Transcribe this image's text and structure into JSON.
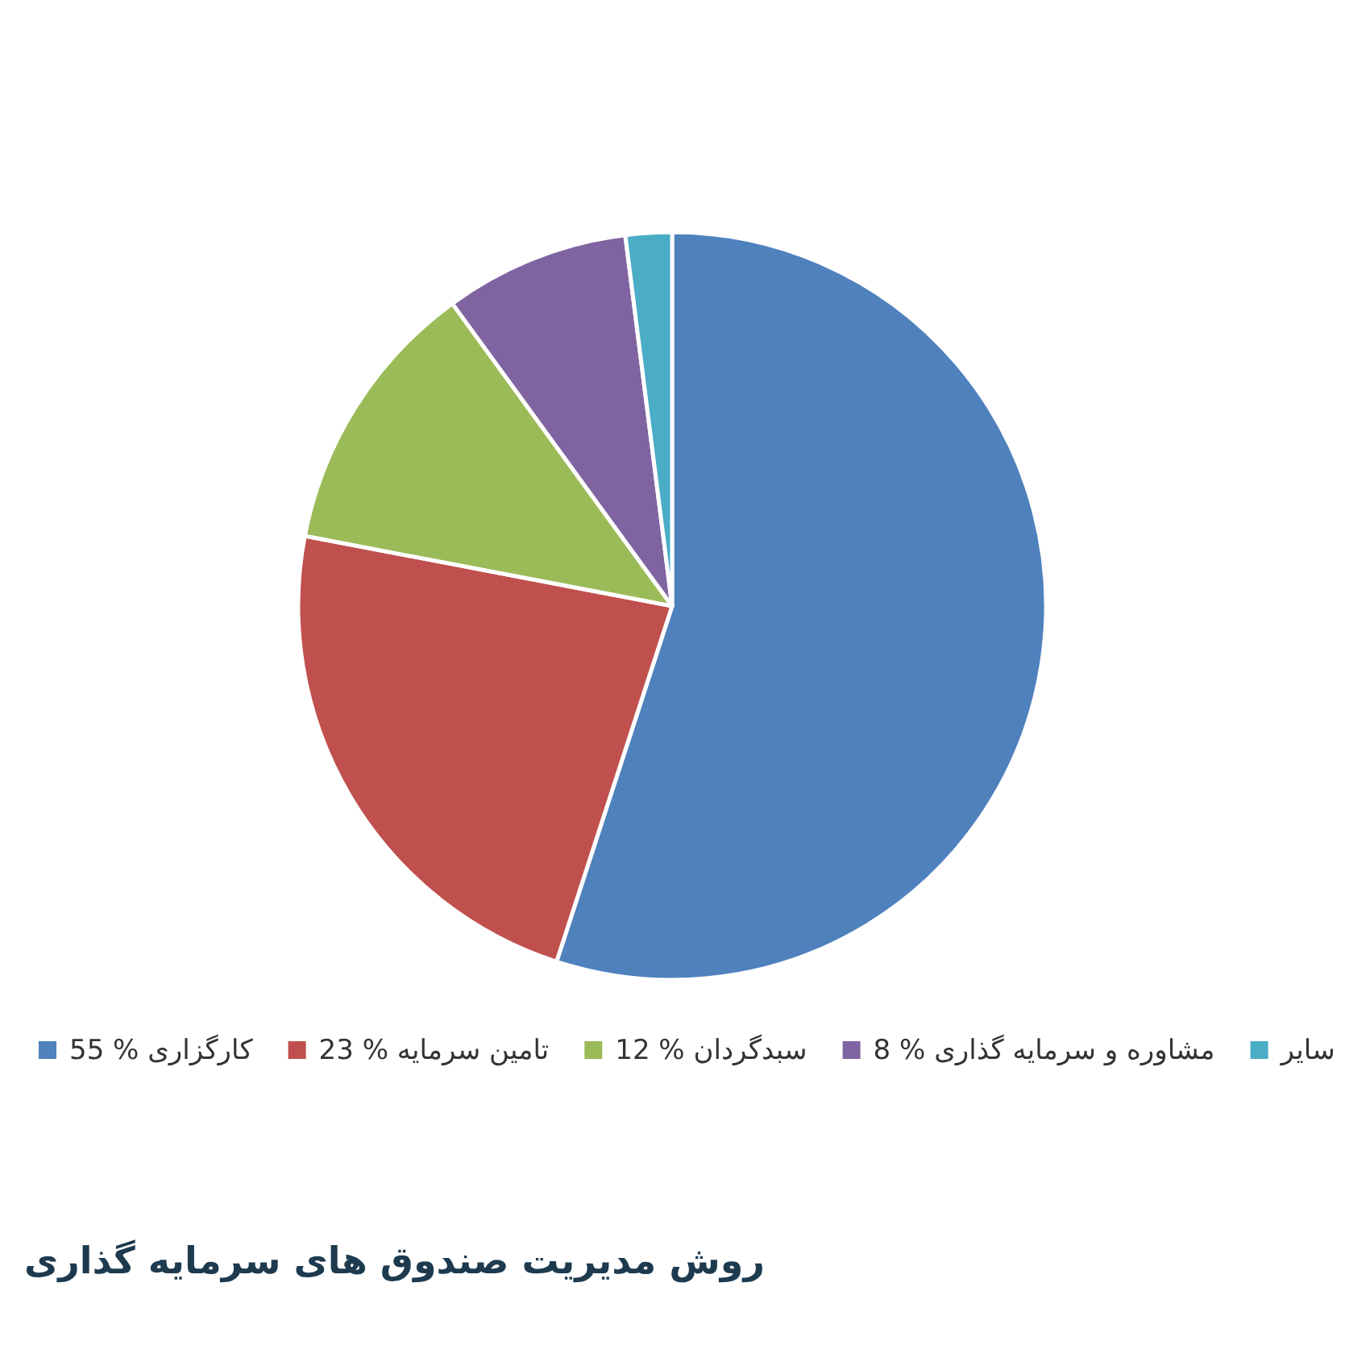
{
  "chart_data": {
    "type": "pie",
    "title": "روش مدیریت صندوق های سرمایه گذاری",
    "categories": [
      "55 % کارگزاری",
      "23  % تامین سرمایه",
      "12 % سبدگردان",
      "8 % مشاوره و سرمایه گذاری",
      "سایر"
    ],
    "values": [
      55,
      23,
      12,
      8,
      2
    ],
    "colors": [
      "#4f81bd",
      "#c0504d",
      "#9bbb59",
      "#8064a2",
      "#4bacc6"
    ],
    "legend": "bottom"
  }
}
